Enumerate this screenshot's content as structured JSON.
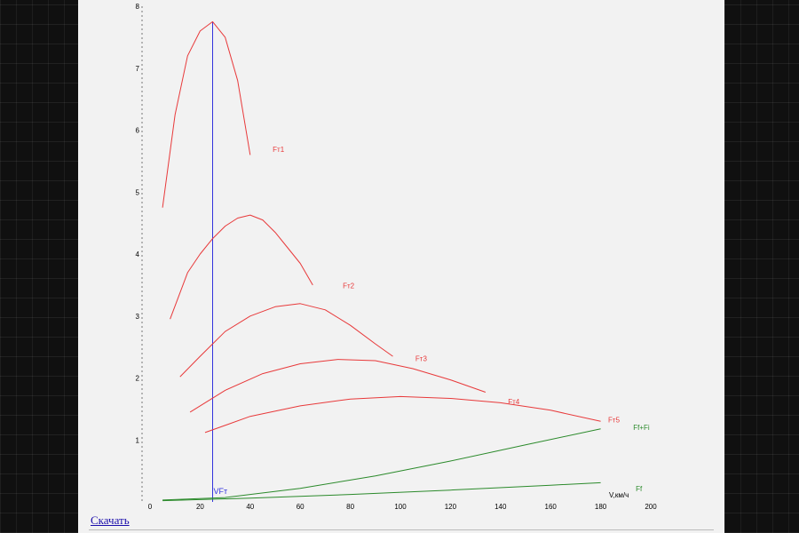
{
  "chart_data": {
    "type": "line",
    "xlabel": "V,км/ч",
    "ylabel": "",
    "xlim": [
      0,
      200
    ],
    "ylim": [
      0,
      8
    ],
    "x_ticks": [
      0,
      20,
      40,
      60,
      80,
      100,
      120,
      140,
      160,
      180,
      200
    ],
    "y_ticks": [
      1,
      2,
      3,
      4,
      5,
      6,
      7,
      8
    ],
    "grid": false,
    "series": [
      {
        "name": "Fт1",
        "color": "#e8393a",
        "x": [
          5,
          10,
          15,
          20,
          25,
          30,
          35,
          40
        ],
        "y": [
          4.75,
          6.25,
          7.2,
          7.6,
          7.75,
          7.5,
          6.8,
          5.6
        ]
      },
      {
        "name": "Fт2",
        "color": "#e8393a",
        "x": [
          8,
          15,
          20,
          25,
          30,
          35,
          40,
          45,
          50,
          55,
          60,
          65
        ],
        "y": [
          2.95,
          3.7,
          4.0,
          4.25,
          4.45,
          4.58,
          4.63,
          4.55,
          4.35,
          4.1,
          3.85,
          3.5
        ]
      },
      {
        "name": "Fт3",
        "color": "#e8393a",
        "x": [
          12,
          20,
          30,
          40,
          50,
          60,
          70,
          80,
          90,
          97
        ],
        "y": [
          2.02,
          2.35,
          2.75,
          3.0,
          3.15,
          3.2,
          3.1,
          2.85,
          2.55,
          2.35
        ]
      },
      {
        "name": "Fт4",
        "color": "#e8393a",
        "x": [
          16,
          30,
          45,
          60,
          75,
          90,
          105,
          120,
          134
        ],
        "y": [
          1.45,
          1.8,
          2.07,
          2.23,
          2.3,
          2.28,
          2.15,
          1.97,
          1.77
        ]
      },
      {
        "name": "Fт5",
        "color": "#e8393a",
        "x": [
          22,
          40,
          60,
          80,
          100,
          120,
          140,
          160,
          180
        ],
        "y": [
          1.12,
          1.38,
          1.55,
          1.66,
          1.7,
          1.67,
          1.6,
          1.48,
          1.3
        ]
      },
      {
        "name": "Ff+Fi",
        "color": "#2b8a2b",
        "x": [
          5,
          30,
          60,
          90,
          120,
          150,
          180
        ],
        "y": [
          0.03,
          0.07,
          0.22,
          0.42,
          0.66,
          0.92,
          1.18
        ]
      },
      {
        "name": "Ff",
        "color": "#2b8a2b",
        "x": [
          5,
          40,
          80,
          120,
          160,
          180
        ],
        "y": [
          0.02,
          0.06,
          0.12,
          0.19,
          0.27,
          0.31
        ]
      }
    ],
    "markers": [
      {
        "name": "VFт",
        "x": 25,
        "color": "#3333dd"
      }
    ],
    "series_labels": [
      {
        "text": "Fт1",
        "x": 49,
        "y": 5.65
      },
      {
        "text": "Fт2",
        "x": 77,
        "y": 3.45
      },
      {
        "text": "Fт3",
        "x": 106,
        "y": 2.27
      },
      {
        "text": "Fт4",
        "x": 143,
        "y": 1.58
      },
      {
        "text": "Fт5",
        "x": 183,
        "y": 1.28
      },
      {
        "text": "Ff+Fi",
        "x": 193,
        "y": 1.16
      },
      {
        "text": "Ff",
        "x": 194,
        "y": 0.17
      }
    ]
  },
  "footer": {
    "download_label": "Скачать"
  }
}
